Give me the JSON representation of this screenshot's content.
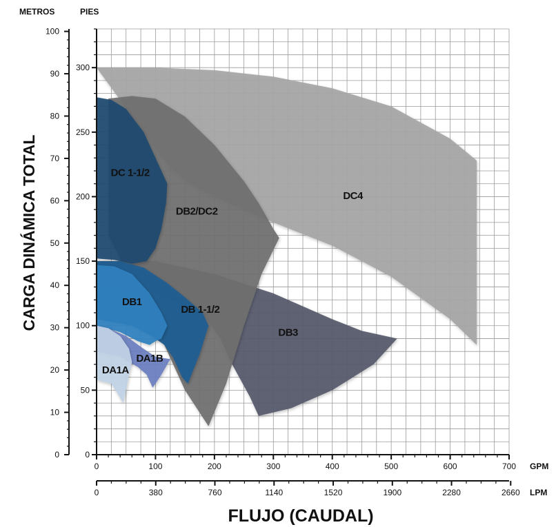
{
  "chart_data": {
    "type": "area",
    "ylabel": "CARGA DINÁMICA TOTAL",
    "xlabel": "FLUJO (CAUDAL)",
    "y_left_unit": "METROS",
    "y_right_unit": "PIES",
    "x_top_unit": "GPM",
    "x_bottom_unit": "LPM",
    "y_meters_ticks": [
      "0",
      "10",
      "20",
      "30",
      "40",
      "50",
      "60",
      "70",
      "80",
      "90",
      "100"
    ],
    "y_feet_ticks": [
      "0",
      "50",
      "100",
      "150",
      "200",
      "250",
      "300"
    ],
    "x_gpm_ticks": [
      "0",
      "100",
      "200",
      "300",
      "400",
      "500",
      "600",
      "700"
    ],
    "x_lpm_ticks": [
      "0",
      "380",
      "760",
      "1140",
      "1520",
      "1900",
      "2280",
      "2660"
    ],
    "xlim_gpm": [
      0,
      700
    ],
    "ylim_feet": [
      0,
      330
    ],
    "grid": true,
    "regions": [
      {
        "name": "DC4",
        "color": "#a6a6a6",
        "label_at": [
          435,
          198
        ],
        "outline": [
          [
            0,
            300
          ],
          [
            100,
            300
          ],
          [
            200,
            298
          ],
          [
            300,
            293
          ],
          [
            400,
            284
          ],
          [
            500,
            270
          ],
          [
            600,
            245
          ],
          [
            645,
            228
          ],
          [
            645,
            85
          ],
          [
            600,
            105
          ],
          [
            500,
            138
          ],
          [
            400,
            162
          ],
          [
            300,
            180
          ],
          [
            200,
            200
          ],
          [
            150,
            212
          ],
          [
            120,
            225
          ]
        ]
      },
      {
        "name": "DB3",
        "color": "#555a6b",
        "label_at": [
          325,
          92
        ],
        "outline": [
          [
            0,
            150
          ],
          [
            100,
            150
          ],
          [
            200,
            140
          ],
          [
            300,
            125
          ],
          [
            400,
            105
          ],
          [
            450,
            96
          ],
          [
            510,
            90
          ],
          [
            470,
            70
          ],
          [
            400,
            50
          ],
          [
            330,
            36
          ],
          [
            275,
            30
          ],
          [
            260,
            45
          ],
          [
            230,
            70
          ],
          [
            210,
            90
          ],
          [
            180,
            110
          ],
          [
            100,
            125
          ],
          [
            0,
            130
          ]
        ]
      },
      {
        "name": "DB2/DC2",
        "color": "#6f6f6f",
        "label_at": [
          170,
          186
        ],
        "outline": [
          [
            20,
            276
          ],
          [
            60,
            278
          ],
          [
            100,
            276
          ],
          [
            150,
            262
          ],
          [
            200,
            240
          ],
          [
            250,
            212
          ],
          [
            275,
            195
          ],
          [
            300,
            175
          ],
          [
            310,
            168
          ],
          [
            280,
            140
          ],
          [
            250,
            100
          ],
          [
            220,
            55
          ],
          [
            190,
            22
          ],
          [
            150,
            50
          ],
          [
            110,
            90
          ],
          [
            70,
            125
          ],
          [
            20,
            170
          ]
        ]
      },
      {
        "name": "DC 1-1/2",
        "color": "#1e4a6f",
        "label_at": [
          57,
          216
        ],
        "outline": [
          [
            0,
            277
          ],
          [
            25,
            275
          ],
          [
            50,
            268
          ],
          [
            80,
            250
          ],
          [
            100,
            230
          ],
          [
            120,
            210
          ],
          [
            118,
            195
          ],
          [
            110,
            175
          ],
          [
            100,
            160
          ],
          [
            85,
            150
          ],
          [
            60,
            148
          ],
          [
            30,
            151
          ],
          [
            0,
            152
          ]
        ]
      },
      {
        "name": "DB 1-1/2",
        "color": "#1e5c92",
        "label_at": [
          176,
          110
        ],
        "outline": [
          [
            0,
            150
          ],
          [
            40,
            150
          ],
          [
            80,
            145
          ],
          [
            120,
            133
          ],
          [
            150,
            122
          ],
          [
            180,
            110
          ],
          [
            190,
            100
          ],
          [
            175,
            78
          ],
          [
            155,
            55
          ],
          [
            145,
            60
          ],
          [
            130,
            75
          ],
          [
            115,
            85
          ],
          [
            100,
            90
          ],
          [
            60,
            100
          ],
          [
            0,
            105
          ]
        ]
      },
      {
        "name": "DB1",
        "color": "#2e81bf",
        "label_at": [
          60,
          116
        ],
        "outline": [
          [
            0,
            147
          ],
          [
            30,
            146
          ],
          [
            60,
            140
          ],
          [
            90,
            125
          ],
          [
            110,
            110
          ],
          [
            120,
            100
          ],
          [
            110,
            90
          ],
          [
            100,
            88
          ],
          [
            90,
            85
          ],
          [
            70,
            88
          ],
          [
            40,
            95
          ],
          [
            0,
            100
          ]
        ]
      },
      {
        "name": "DA1B",
        "color": "#6c7fbf",
        "label_at": [
          90,
          72
        ],
        "outline": [
          [
            0,
            100
          ],
          [
            20,
            98
          ],
          [
            50,
            92
          ],
          [
            80,
            82
          ],
          [
            100,
            76
          ],
          [
            125,
            74
          ],
          [
            110,
            62
          ],
          [
            100,
            55
          ],
          [
            95,
            52
          ],
          [
            85,
            62
          ],
          [
            70,
            68
          ],
          [
            40,
            76
          ],
          [
            0,
            80
          ]
        ]
      },
      {
        "name": "DA1A",
        "color": "#c2d3e6",
        "label_at": [
          32,
          63
        ],
        "outline": [
          [
            0,
            100
          ],
          [
            20,
            98
          ],
          [
            40,
            92
          ],
          [
            55,
            82
          ],
          [
            60,
            72
          ],
          [
            55,
            62
          ],
          [
            50,
            50
          ],
          [
            45,
            40
          ],
          [
            35,
            48
          ],
          [
            25,
            55
          ],
          [
            0,
            58
          ]
        ]
      }
    ]
  }
}
